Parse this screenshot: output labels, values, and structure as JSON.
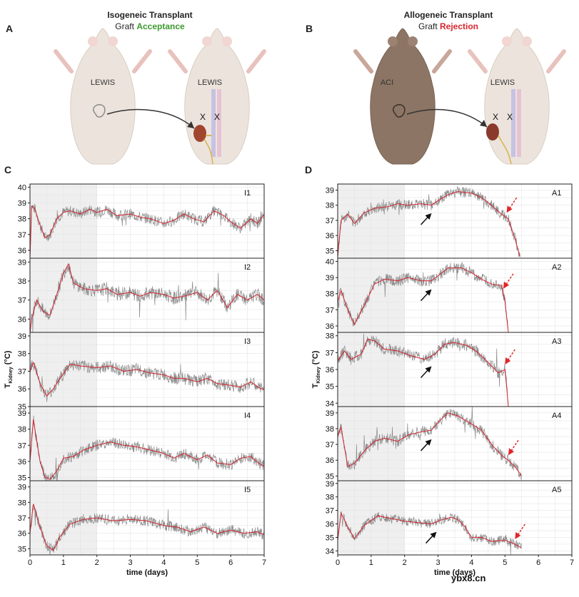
{
  "panels": {
    "A": {
      "letter": "A",
      "title": "Isogeneic Transplant",
      "subtitle_prefix": "Graft ",
      "subtitle_emph": "Acceptance",
      "donor": "LEWIS",
      "recipient": "LEWIS",
      "marks": [
        "X",
        "X"
      ]
    },
    "B": {
      "letter": "B",
      "title": "Allogeneic Transplant",
      "subtitle_prefix": "Graft ",
      "subtitle_emph": "Rejection",
      "donor": "ACI",
      "recipient": "LEWIS",
      "marks": [
        "X",
        "X"
      ]
    },
    "C": {
      "letter": "C"
    },
    "D": {
      "letter": "D"
    }
  },
  "watermark": "ybx8.cn",
  "colors": {
    "fit_line": "#d1242f",
    "raw_data": "#8a8a8a",
    "shade": "#efefef",
    "arrow_black": "#111111",
    "arrow_red": "#e0262b",
    "accept": "#3c9a2e",
    "reject": "#d8262d"
  },
  "chart_data": [
    {
      "type": "line",
      "panel": "C",
      "xlabel": "time (days)",
      "ylabel": "T_Kidney (°C)",
      "x_ticks": [
        0,
        1,
        2,
        3,
        4,
        5,
        6,
        7
      ],
      "xlim": [
        0,
        7
      ],
      "shaded_x": [
        0,
        2
      ],
      "grid": true,
      "subplots": [
        {
          "label": "I1",
          "ylim": [
            35.5,
            40.2
          ],
          "y_ticks": [
            36,
            37,
            38,
            39,
            40
          ],
          "points": [
            [
              0,
              35.5
            ],
            [
              0.05,
              38.8
            ],
            [
              0.15,
              38.6
            ],
            [
              0.3,
              37.6
            ],
            [
              0.45,
              36.8
            ],
            [
              0.6,
              37.0
            ],
            [
              0.8,
              38.0
            ],
            [
              1.0,
              38.4
            ],
            [
              1.2,
              38.5
            ],
            [
              1.5,
              38.3
            ],
            [
              1.8,
              38.6
            ],
            [
              2.0,
              38.4
            ],
            [
              2.3,
              38.6
            ],
            [
              2.6,
              38.2
            ],
            [
              3.0,
              38.3
            ],
            [
              3.3,
              38.1
            ],
            [
              3.6,
              38.0
            ],
            [
              4.0,
              37.7
            ],
            [
              4.3,
              37.9
            ],
            [
              4.6,
              38.3
            ],
            [
              4.9,
              38.0
            ],
            [
              5.2,
              37.8
            ],
            [
              5.5,
              38.5
            ],
            [
              5.8,
              38.2
            ],
            [
              6.0,
              37.8
            ],
            [
              6.3,
              37.4
            ],
            [
              6.6,
              38.0
            ],
            [
              6.8,
              37.7
            ],
            [
              7.0,
              38.3
            ]
          ]
        },
        {
          "label": "I2",
          "ylim": [
            35.3,
            39.2
          ],
          "y_ticks": [
            36,
            37,
            38,
            39
          ],
          "points": [
            [
              0,
              35.0
            ],
            [
              0.05,
              36.0
            ],
            [
              0.2,
              37.0
            ],
            [
              0.4,
              36.4
            ],
            [
              0.6,
              36.2
            ],
            [
              0.8,
              37.3
            ],
            [
              1.0,
              38.4
            ],
            [
              1.15,
              38.9
            ],
            [
              1.3,
              37.9
            ],
            [
              1.6,
              37.6
            ],
            [
              2.0,
              37.5
            ],
            [
              2.3,
              37.6
            ],
            [
              2.6,
              37.3
            ],
            [
              3.0,
              37.4
            ],
            [
              3.3,
              37.2
            ],
            [
              3.6,
              37.4
            ],
            [
              4.0,
              37.3
            ],
            [
              4.3,
              37.1
            ],
            [
              4.6,
              37.2
            ],
            [
              5.0,
              37.4
            ],
            [
              5.3,
              37.0
            ],
            [
              5.6,
              37.5
            ],
            [
              5.9,
              36.6
            ],
            [
              6.2,
              37.3
            ],
            [
              6.5,
              37.0
            ],
            [
              6.8,
              37.3
            ],
            [
              7.0,
              37.0
            ]
          ]
        },
        {
          "label": "I3",
          "ylim": [
            35.0,
            39.2
          ],
          "y_ticks": [
            35,
            36,
            37,
            38,
            39
          ],
          "points": [
            [
              0,
              37.0
            ],
            [
              0.1,
              37.5
            ],
            [
              0.3,
              36.3
            ],
            [
              0.5,
              35.6
            ],
            [
              0.7,
              36.0
            ],
            [
              0.9,
              36.6
            ],
            [
              1.2,
              37.4
            ],
            [
              1.5,
              37.3
            ],
            [
              2.0,
              37.2
            ],
            [
              2.4,
              37.3
            ],
            [
              2.8,
              37.0
            ],
            [
              3.2,
              37.1
            ],
            [
              3.6,
              36.9
            ],
            [
              4.0,
              36.8
            ],
            [
              4.3,
              36.6
            ],
            [
              4.6,
              36.6
            ],
            [
              5.0,
              36.4
            ],
            [
              5.3,
              36.6
            ],
            [
              5.6,
              36.3
            ],
            [
              6.0,
              36.2
            ],
            [
              6.3,
              36.1
            ],
            [
              6.6,
              36.4
            ],
            [
              6.9,
              36.0
            ],
            [
              7.0,
              36.0
            ]
          ]
        },
        {
          "label": "I4",
          "ylim": [
            34.8,
            39.4
          ],
          "y_ticks": [
            35,
            36,
            37,
            38,
            39
          ],
          "points": [
            [
              0,
              36.0
            ],
            [
              0.1,
              38.6
            ],
            [
              0.3,
              36.0
            ],
            [
              0.45,
              35.0
            ],
            [
              0.6,
              34.9
            ],
            [
              0.8,
              35.4
            ],
            [
              1.0,
              36.2
            ],
            [
              1.3,
              36.3
            ],
            [
              1.6,
              36.7
            ],
            [
              2.0,
              37.0
            ],
            [
              2.4,
              37.2
            ],
            [
              2.8,
              37.0
            ],
            [
              3.2,
              36.9
            ],
            [
              3.6,
              36.7
            ],
            [
              4.0,
              36.5
            ],
            [
              4.3,
              36.2
            ],
            [
              4.6,
              36.5
            ],
            [
              5.0,
              36.1
            ],
            [
              5.3,
              36.4
            ],
            [
              5.6,
              35.9
            ],
            [
              6.0,
              35.8
            ],
            [
              6.3,
              36.2
            ],
            [
              6.6,
              36.3
            ],
            [
              6.9,
              35.8
            ],
            [
              7.0,
              35.7
            ]
          ]
        },
        {
          "label": "I5",
          "ylim": [
            34.6,
            39.4
          ],
          "y_ticks": [
            35,
            36,
            37,
            38,
            39
          ],
          "points": [
            [
              0,
              36.0
            ],
            [
              0.1,
              37.9
            ],
            [
              0.3,
              36.4
            ],
            [
              0.5,
              35.2
            ],
            [
              0.7,
              34.9
            ],
            [
              0.9,
              35.8
            ],
            [
              1.2,
              36.6
            ],
            [
              1.6,
              36.9
            ],
            [
              2.0,
              37.0
            ],
            [
              2.5,
              36.8
            ],
            [
              3.0,
              36.9
            ],
            [
              3.5,
              36.8
            ],
            [
              4.0,
              36.5
            ],
            [
              4.4,
              36.4
            ],
            [
              4.8,
              36.1
            ],
            [
              5.2,
              36.4
            ],
            [
              5.6,
              36.0
            ],
            [
              6.0,
              36.2
            ],
            [
              6.4,
              36.0
            ],
            [
              6.8,
              36.1
            ],
            [
              7.0,
              35.9
            ]
          ]
        }
      ]
    },
    {
      "type": "line",
      "panel": "D",
      "xlabel": "time (days)",
      "ylabel": "T_Kidney (°C)",
      "x_ticks": [
        0,
        1,
        2,
        3,
        4,
        5,
        6,
        7
      ],
      "xlim": [
        0,
        7
      ],
      "shaded_x": [
        0,
        2
      ],
      "grid": true,
      "subplots": [
        {
          "label": "A1",
          "ylim": [
            34.5,
            39.4
          ],
          "y_ticks": [
            35,
            36,
            37,
            38,
            39
          ],
          "black_arrow_x": 2.7,
          "red_arrow_x": 5.05,
          "points": [
            [
              0,
              34.6
            ],
            [
              0.1,
              37.0
            ],
            [
              0.3,
              37.4
            ],
            [
              0.5,
              36.8
            ],
            [
              0.8,
              37.5
            ],
            [
              1.1,
              37.8
            ],
            [
              1.5,
              37.9
            ],
            [
              1.8,
              38.1
            ],
            [
              2.1,
              38.0
            ],
            [
              2.5,
              38.1
            ],
            [
              2.8,
              38.0
            ],
            [
              3.0,
              38.3
            ],
            [
              3.3,
              38.7
            ],
            [
              3.6,
              38.9
            ],
            [
              4.0,
              38.8
            ],
            [
              4.3,
              38.5
            ],
            [
              4.6,
              38.0
            ],
            [
              4.9,
              37.4
            ],
            [
              5.1,
              37.1
            ],
            [
              5.3,
              35.8
            ],
            [
              5.45,
              34.6
            ]
          ]
        },
        {
          "label": "A2",
          "ylim": [
            35.6,
            40.2
          ],
          "y_ticks": [
            36,
            37,
            38,
            39,
            40
          ],
          "black_arrow_x": 2.7,
          "red_arrow_x": 4.95,
          "points": [
            [
              0,
              37.5
            ],
            [
              0.1,
              38.2
            ],
            [
              0.3,
              37.0
            ],
            [
              0.5,
              36.1
            ],
            [
              0.8,
              37.3
            ],
            [
              1.1,
              38.6
            ],
            [
              1.4,
              38.9
            ],
            [
              1.8,
              38.8
            ],
            [
              2.1,
              39.0
            ],
            [
              2.5,
              38.8
            ],
            [
              2.8,
              38.8
            ],
            [
              3.0,
              39.1
            ],
            [
              3.3,
              39.6
            ],
            [
              3.7,
              39.6
            ],
            [
              4.0,
              39.3
            ],
            [
              4.3,
              38.9
            ],
            [
              4.6,
              38.6
            ],
            [
              4.9,
              38.5
            ],
            [
              5.0,
              37.5
            ],
            [
              5.1,
              35.6
            ]
          ]
        },
        {
          "label": "A3",
          "ylim": [
            33.8,
            38.2
          ],
          "y_ticks": [
            34,
            35,
            36,
            37,
            38
          ],
          "black_arrow_x": 2.7,
          "red_arrow_x": 5.0,
          "points": [
            [
              0,
              36.5
            ],
            [
              0.2,
              37.1
            ],
            [
              0.4,
              36.6
            ],
            [
              0.7,
              36.9
            ],
            [
              0.9,
              37.8
            ],
            [
              1.1,
              37.7
            ],
            [
              1.4,
              37.2
            ],
            [
              1.8,
              37.1
            ],
            [
              2.2,
              36.8
            ],
            [
              2.6,
              36.6
            ],
            [
              2.9,
              36.9
            ],
            [
              3.2,
              37.5
            ],
            [
              3.5,
              37.6
            ],
            [
              3.9,
              37.4
            ],
            [
              4.2,
              37.0
            ],
            [
              4.5,
              36.4
            ],
            [
              4.8,
              35.8
            ],
            [
              5.0,
              36.0
            ],
            [
              5.05,
              35.0
            ],
            [
              5.1,
              33.8
            ]
          ]
        },
        {
          "label": "A4",
          "ylim": [
            34.7,
            39.4
          ],
          "y_ticks": [
            35,
            36,
            37,
            38,
            39
          ],
          "black_arrow_x": 2.7,
          "red_arrow_x": 5.1,
          "points": [
            [
              0,
              37.5
            ],
            [
              0.1,
              38.1
            ],
            [
              0.3,
              35.6
            ],
            [
              0.5,
              35.8
            ],
            [
              0.8,
              36.6
            ],
            [
              1.1,
              37.2
            ],
            [
              1.4,
              37.4
            ],
            [
              1.8,
              37.2
            ],
            [
              2.1,
              37.6
            ],
            [
              2.5,
              37.8
            ],
            [
              2.8,
              37.9
            ],
            [
              3.0,
              38.4
            ],
            [
              3.3,
              39.0
            ],
            [
              3.6,
              38.8
            ],
            [
              4.0,
              38.3
            ],
            [
              4.3,
              37.9
            ],
            [
              4.6,
              37.0
            ],
            [
              4.9,
              36.3
            ],
            [
              5.1,
              36.0
            ],
            [
              5.3,
              35.6
            ],
            [
              5.5,
              35.0
            ]
          ]
        },
        {
          "label": "A5",
          "ylim": [
            33.7,
            39.2
          ],
          "y_ticks": [
            34,
            35,
            36,
            37,
            38,
            39
          ],
          "black_arrow_x": 2.85,
          "red_arrow_x": 5.3,
          "points": [
            [
              0,
              34.8
            ],
            [
              0.1,
              36.8
            ],
            [
              0.3,
              35.8
            ],
            [
              0.5,
              34.9
            ],
            [
              0.8,
              35.9
            ],
            [
              1.2,
              36.6
            ],
            [
              1.6,
              36.4
            ],
            [
              2.0,
              36.2
            ],
            [
              2.4,
              36.1
            ],
            [
              2.8,
              36.0
            ],
            [
              3.1,
              36.3
            ],
            [
              3.4,
              36.5
            ],
            [
              3.6,
              36.3
            ],
            [
              3.8,
              35.8
            ],
            [
              4.0,
              35.0
            ],
            [
              4.3,
              35.0
            ],
            [
              4.6,
              34.7
            ],
            [
              5.0,
              34.8
            ],
            [
              5.3,
              34.5
            ],
            [
              5.5,
              34.2
            ]
          ]
        }
      ]
    }
  ]
}
